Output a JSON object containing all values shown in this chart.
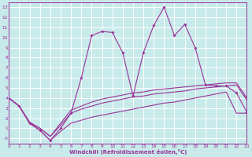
{
  "xlabel": "Windchill (Refroidissement éolien,°C)",
  "background_color": "#c8eaea",
  "grid_color": "#ffffff",
  "line_color": "#993399",
  "xlim": [
    0,
    23
  ],
  "ylim": [
    -0.5,
    13.5
  ],
  "xtick_vals": [
    0,
    1,
    2,
    3,
    4,
    5,
    6,
    7,
    8,
    9,
    10,
    11,
    12,
    13,
    14,
    15,
    16,
    17,
    18,
    19,
    20,
    21,
    22,
    23
  ],
  "ytick_vals": [
    0,
    1,
    2,
    3,
    4,
    5,
    6,
    7,
    8,
    9,
    10,
    11,
    12,
    13
  ],
  "ytick_labels": [
    "-0",
    "1",
    "2",
    "3",
    "4",
    "5",
    "6",
    "7",
    "8",
    "9",
    "10",
    "11",
    "12",
    "13"
  ],
  "line1_x": [
    0,
    1,
    2,
    3,
    4,
    5,
    6,
    7,
    8,
    9,
    10,
    11,
    12,
    13,
    14,
    15,
    16,
    17,
    18,
    19,
    20,
    21,
    22,
    23
  ],
  "line1_y": [
    4.0,
    3.2,
    1.5,
    0.8,
    -0.2,
    1.0,
    2.5,
    6.0,
    10.2,
    10.6,
    10.5,
    8.5,
    4.2,
    8.5,
    11.2,
    13.0,
    10.2,
    11.3,
    9.0,
    5.3,
    5.2,
    5.2,
    4.5,
    2.6
  ],
  "line2_x": [
    0,
    1,
    2,
    3,
    4,
    5,
    6,
    7,
    8,
    9,
    10,
    11,
    12,
    13,
    14,
    15,
    16,
    17,
    18,
    19,
    20,
    21,
    22,
    23
  ],
  "line2_y": [
    4.0,
    3.2,
    1.6,
    1.0,
    0.2,
    1.5,
    2.8,
    3.2,
    3.6,
    3.9,
    4.1,
    4.3,
    4.5,
    4.6,
    4.8,
    4.9,
    5.0,
    5.1,
    5.2,
    5.3,
    5.4,
    5.5,
    5.5,
    4.0
  ],
  "line3_x": [
    0,
    1,
    2,
    3,
    4,
    5,
    6,
    7,
    8,
    9,
    10,
    11,
    12,
    13,
    14,
    15,
    16,
    17,
    18,
    19,
    20,
    21,
    22,
    23
  ],
  "line3_y": [
    4.0,
    3.2,
    1.6,
    1.0,
    0.2,
    1.3,
    2.5,
    2.9,
    3.2,
    3.5,
    3.7,
    3.9,
    4.1,
    4.2,
    4.4,
    4.5,
    4.6,
    4.7,
    4.9,
    5.0,
    5.1,
    5.2,
    5.3,
    3.8
  ],
  "line4_x": [
    0,
    1,
    2,
    3,
    4,
    5,
    6,
    7,
    8,
    9,
    10,
    11,
    12,
    13,
    14,
    15,
    16,
    17,
    18,
    19,
    20,
    21,
    22,
    23
  ],
  "line4_y": [
    4.0,
    3.2,
    1.5,
    0.8,
    -0.2,
    0.7,
    1.5,
    1.8,
    2.1,
    2.3,
    2.5,
    2.7,
    2.9,
    3.1,
    3.3,
    3.5,
    3.6,
    3.8,
    4.0,
    4.2,
    4.4,
    4.6,
    2.5,
    2.5
  ]
}
